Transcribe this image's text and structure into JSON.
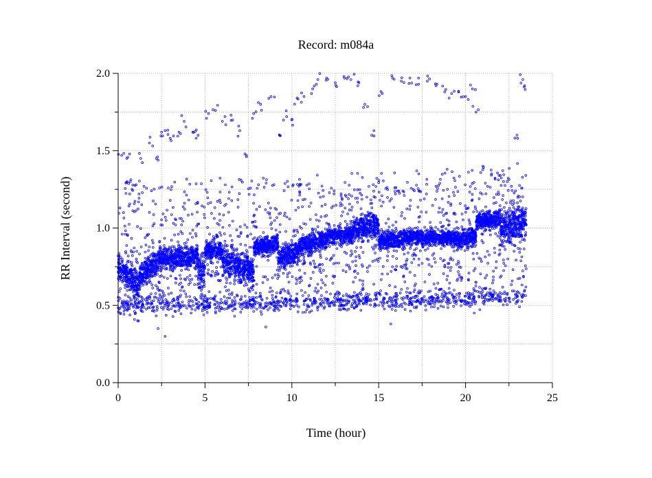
{
  "chart_data": {
    "type": "scatter",
    "title": "Record:  m084a",
    "xlabel": "Time (hour)",
    "ylabel": "RR Interval (second)",
    "xlim": [
      0,
      25
    ],
    "ylim": [
      0,
      2
    ],
    "x_ticks": [
      "0",
      "5",
      "10",
      "15",
      "20",
      "25"
    ],
    "y_ticks": [
      "0.0",
      "0.5",
      "1.0",
      "1.5",
      "2.0"
    ],
    "grid": true,
    "legend": "none",
    "marker_color": "#0000ff",
    "series": [
      {
        "name": "",
        "segments": [
          {
            "x": [
              0.0,
              0.5
            ],
            "y": [
              0.75,
              0.7
            ],
            "spread": 0.06
          },
          {
            "x": [
              0.5,
              1.2
            ],
            "y": [
              0.7,
              0.62
            ],
            "spread": 0.08
          },
          {
            "x": [
              1.2,
              2.3
            ],
            "y": [
              0.7,
              0.78
            ],
            "spread": 0.07
          },
          {
            "x": [
              2.3,
              4.6
            ],
            "y": [
              0.8,
              0.82
            ],
            "spread": 0.06
          },
          {
            "x": [
              4.6,
              5.0
            ],
            "y": [
              0.72,
              0.72
            ],
            "spread": 0.09
          },
          {
            "x": [
              5.0,
              6.0
            ],
            "y": [
              0.85,
              0.86
            ],
            "spread": 0.05
          },
          {
            "x": [
              6.0,
              7.8
            ],
            "y": [
              0.8,
              0.72
            ],
            "spread": 0.08
          },
          {
            "x": [
              7.8,
              9.2
            ],
            "y": [
              0.88,
              0.9
            ],
            "spread": 0.05
          },
          {
            "x": [
              9.2,
              10.4
            ],
            "y": [
              0.8,
              0.85
            ],
            "spread": 0.06
          },
          {
            "x": [
              10.4,
              12.0
            ],
            "y": [
              0.88,
              0.93
            ],
            "spread": 0.05
          },
          {
            "x": [
              12.0,
              13.5
            ],
            "y": [
              0.95,
              0.96
            ],
            "spread": 0.05
          },
          {
            "x": [
              13.5,
              15.0
            ],
            "y": [
              1.0,
              1.02
            ],
            "spread": 0.07
          },
          {
            "x": [
              15.0,
              16.5
            ],
            "y": [
              0.92,
              0.93
            ],
            "spread": 0.05
          },
          {
            "x": [
              16.5,
              19.5
            ],
            "y": [
              0.94,
              0.94
            ],
            "spread": 0.04
          },
          {
            "x": [
              19.5,
              20.6
            ],
            "y": [
              0.92,
              0.95
            ],
            "spread": 0.05
          },
          {
            "x": [
              20.6,
              22.0
            ],
            "y": [
              1.05,
              1.06
            ],
            "spread": 0.05
          },
          {
            "x": [
              22.0,
              23.5
            ],
            "y": [
              1.0,
              1.05
            ],
            "spread": 0.09
          }
        ],
        "lower_band": {
          "x": [
            0.0,
            23.5
          ],
          "y": [
            0.5,
            0.55
          ],
          "spread": 0.03
        },
        "upper_outliers": [
          [
            0.2,
            1.47
          ],
          [
            0.5,
            1.45
          ],
          [
            0.7,
            1.3
          ],
          [
            0.8,
            1.25
          ],
          [
            1.3,
            1.45
          ],
          [
            1.8,
            1.55
          ],
          [
            2.2,
            1.45
          ],
          [
            2.5,
            1.62
          ],
          [
            2.7,
            1.63
          ],
          [
            3.0,
            1.58
          ],
          [
            3.5,
            1.62
          ],
          [
            3.8,
            1.69
          ],
          [
            4.3,
            1.62
          ],
          [
            4.6,
            1.6
          ],
          [
            5.2,
            1.74
          ],
          [
            5.6,
            1.76
          ],
          [
            6.0,
            1.69
          ],
          [
            6.5,
            1.73
          ],
          [
            7.0,
            1.63
          ],
          [
            7.3,
            1.48
          ],
          [
            7.8,
            1.74
          ],
          [
            8.2,
            1.8
          ],
          [
            8.8,
            1.85
          ],
          [
            9.3,
            1.6
          ],
          [
            9.7,
            1.72
          ],
          [
            10.0,
            1.7
          ],
          [
            10.3,
            1.84
          ],
          [
            10.7,
            1.85
          ],
          [
            11.2,
            1.9
          ],
          [
            11.5,
            1.96
          ],
          [
            12.0,
            1.97
          ],
          [
            12.5,
            1.94
          ],
          [
            13.0,
            1.98
          ],
          [
            13.4,
            1.96
          ],
          [
            13.8,
            1.92
          ],
          [
            14.2,
            1.8
          ],
          [
            14.6,
            1.6
          ],
          [
            15.2,
            1.87
          ],
          [
            15.8,
            1.97
          ],
          [
            16.3,
            1.95
          ],
          [
            16.8,
            1.97
          ],
          [
            17.3,
            1.93
          ],
          [
            17.8,
            1.95
          ],
          [
            18.3,
            1.92
          ],
          [
            18.8,
            1.88
          ],
          [
            19.2,
            1.87
          ],
          [
            19.6,
            1.88
          ],
          [
            20.0,
            1.85
          ],
          [
            20.4,
            1.9
          ],
          [
            20.6,
            1.75
          ],
          [
            21.0,
            1.4
          ],
          [
            21.5,
            1.35
          ],
          [
            22.0,
            1.34
          ],
          [
            22.4,
            1.3
          ],
          [
            23.0,
            1.58
          ],
          [
            23.3,
            1.96
          ],
          [
            23.4,
            1.92
          ]
        ],
        "lower_outliers": [
          [
            1.0,
            0.45
          ],
          [
            2.3,
            0.35
          ],
          [
            2.7,
            0.3
          ],
          [
            4.2,
            0.45
          ],
          [
            6.7,
            0.43
          ],
          [
            8.5,
            0.36
          ],
          [
            15.7,
            0.38
          ],
          [
            20.5,
            0.45
          ]
        ]
      }
    ]
  }
}
